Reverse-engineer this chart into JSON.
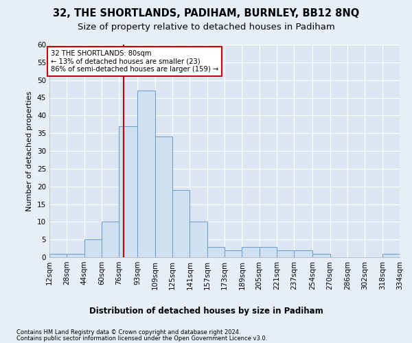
{
  "title1": "32, THE SHORTLANDS, PADIHAM, BURNLEY, BB12 8NQ",
  "title2": "Size of property relative to detached houses in Padiham",
  "xlabel": "Distribution of detached houses by size in Padiham",
  "ylabel": "Number of detached properties",
  "footer1": "Contains HM Land Registry data © Crown copyright and database right 2024.",
  "footer2": "Contains public sector information licensed under the Open Government Licence v3.0.",
  "annotation_line1": "32 THE SHORTLANDS: 80sqm",
  "annotation_line2": "← 13% of detached houses are smaller (23)",
  "annotation_line3": "86% of semi-detached houses are larger (159) →",
  "property_size": 80,
  "bin_edges": [
    12,
    28,
    44,
    60,
    76,
    93,
    109,
    125,
    141,
    157,
    173,
    189,
    205,
    221,
    237,
    254,
    270,
    286,
    302,
    318,
    334
  ],
  "bin_labels": [
    "12sqm",
    "28sqm",
    "44sqm",
    "60sqm",
    "76sqm",
    "93sqm",
    "109sqm",
    "125sqm",
    "141sqm",
    "157sqm",
    "173sqm",
    "189sqm",
    "205sqm",
    "221sqm",
    "237sqm",
    "254sqm",
    "270sqm",
    "286sqm",
    "302sqm",
    "318sqm",
    "334sqm"
  ],
  "counts": [
    1,
    1,
    5,
    10,
    37,
    47,
    34,
    19,
    10,
    3,
    2,
    3,
    3,
    2,
    2,
    1,
    0,
    0,
    0,
    1
  ],
  "bar_color": "#cfe0f0",
  "bar_edge_color": "#6699cc",
  "vline_color": "#cc0000",
  "vline_x": 80,
  "annotation_box_color": "#ffffff",
  "annotation_box_edge": "#cc0000",
  "ylim": [
    0,
    60
  ],
  "yticks": [
    0,
    5,
    10,
    15,
    20,
    25,
    30,
    35,
    40,
    45,
    50,
    55,
    60
  ],
  "bg_color": "#e8eef6",
  "plot_bg_color": "#dce6f2",
  "grid_color": "#ffffff",
  "title1_fontsize": 10.5,
  "title2_fontsize": 9.5,
  "xlabel_fontsize": 8.5,
  "ylabel_fontsize": 8,
  "tick_fontsize": 7.5,
  "footer_fontsize": 6.0
}
